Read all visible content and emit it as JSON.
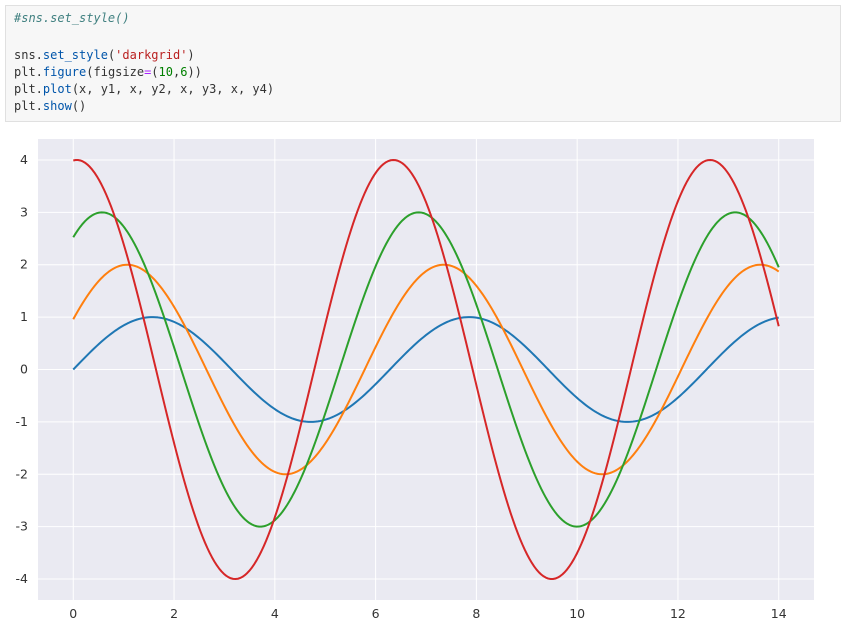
{
  "notebook": {
    "code_lines": [
      [
        {
          "t": "#sns.set_style()",
          "c": "cm"
        }
      ],
      [],
      [
        {
          "t": "sns."
        },
        {
          "t": "set_style",
          "c": "fn"
        },
        {
          "t": "("
        },
        {
          "t": "'darkgrid'",
          "c": "st"
        },
        {
          "t": ")"
        }
      ],
      [
        {
          "t": "plt."
        },
        {
          "t": "figure",
          "c": "fn"
        },
        {
          "t": "(figsize"
        },
        {
          "t": "=",
          "c": "op"
        },
        {
          "t": "("
        },
        {
          "t": "10",
          "c": "nm"
        },
        {
          "t": ","
        },
        {
          "t": "6",
          "c": "nm"
        },
        {
          "t": "))"
        }
      ],
      [
        {
          "t": "plt."
        },
        {
          "t": "plot",
          "c": "fn"
        },
        {
          "t": "(x, y1, x, y2, x, y3, x, y4)"
        }
      ],
      [
        {
          "t": "plt."
        },
        {
          "t": "show",
          "c": "fn"
        },
        {
          "t": "()"
        }
      ]
    ]
  },
  "chart_data": {
    "type": "line",
    "style": "darkgrid",
    "background_color": "#eaeaf2",
    "grid_color": "#ffffff",
    "grid": true,
    "x_range": [
      0,
      14
    ],
    "xlim": [
      -0.7,
      14.7
    ],
    "ylim": [
      -4.4,
      4.4
    ],
    "xticks": [
      0,
      2,
      4,
      6,
      8,
      10,
      12,
      14
    ],
    "yticks": [
      -4,
      -3,
      -2,
      -1,
      0,
      1,
      2,
      3,
      4
    ],
    "series": [
      {
        "function": "1*sin(x + 0)",
        "amplitude": 1,
        "phase": 0,
        "color": "#1f77b4"
      },
      {
        "function": "2*sin(x + 0.5)",
        "amplitude": 2,
        "phase": 0.5,
        "color": "#ff7f0e"
      },
      {
        "function": "3*sin(x + 1)",
        "amplitude": 3,
        "phase": 1,
        "color": "#2ca02c"
      },
      {
        "function": "4*sin(x + 1.5)",
        "amplitude": 4,
        "phase": 1.5,
        "color": "#d62728"
      }
    ],
    "title": "",
    "xlabel": "",
    "ylabel": ""
  }
}
